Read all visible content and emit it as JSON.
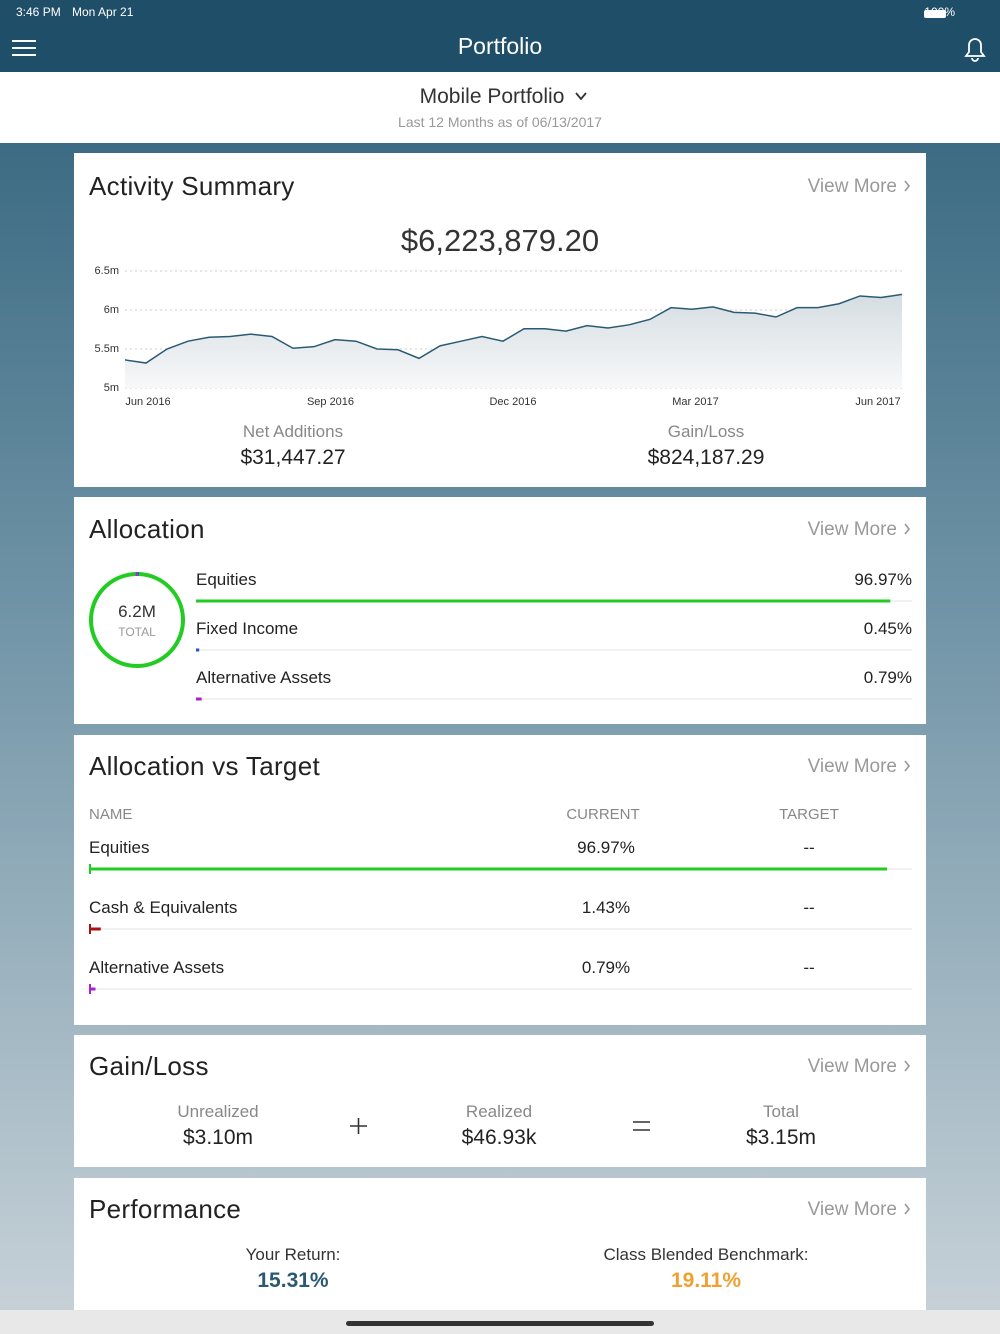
{
  "status": {
    "time": "3:46 PM",
    "date": "Mon Apr 21",
    "battery": "100%"
  },
  "nav": {
    "title": "Portfolio"
  },
  "portfolio": {
    "name": "Mobile Portfolio",
    "period": "Last 12 Months as of 06/13/2017"
  },
  "activity": {
    "title": "Activity Summary",
    "view_more": "View More",
    "total": "$6,223,879.20",
    "chart": {
      "type": "line",
      "x_labels": [
        "Jun 2016",
        "Sep 2016",
        "Dec 2016",
        "Mar 2017",
        "Jun 2017"
      ],
      "values": [
        5360000,
        5320000,
        5500000,
        5600000,
        5650000,
        5660000,
        5690000,
        5660000,
        5510000,
        5530000,
        5620000,
        5600000,
        5500000,
        5490000,
        5380000,
        5540000,
        5600000,
        5660000,
        5600000,
        5760000,
        5760000,
        5730000,
        5800000,
        5770000,
        5810000,
        5880000,
        6030000,
        6010000,
        6040000,
        5970000,
        5960000,
        5910000,
        6030000,
        6030000,
        6080000,
        6180000,
        6160000,
        6200000
      ],
      "color": "#2a5a73",
      "ylim": [
        5000000,
        6500000
      ],
      "yticks": [
        {
          "value": 5000000,
          "label": "5m"
        },
        {
          "value": 5500000,
          "label": "5.5m"
        },
        {
          "value": 6000000,
          "label": "6m"
        },
        {
          "value": 6500000,
          "label": "6.5m"
        }
      ],
      "grid": true
    },
    "net_additions": {
      "label": "Net Additions",
      "value": "$31,447.27"
    },
    "gain_loss": {
      "label": "Gain/Loss",
      "value": "$824,187.29"
    }
  },
  "allocation": {
    "title": "Allocation",
    "view_more": "View More",
    "total_value": "6.2M",
    "total_label": "TOTAL",
    "rows": [
      {
        "name": "Equities",
        "value": 96.97,
        "value_label": "96.97%",
        "color": "#22cc22"
      },
      {
        "name": "Fixed Income",
        "value": 0.45,
        "value_label": "0.45%",
        "color": "#2255cc"
      },
      {
        "name": "Alternative Assets",
        "value": 0.79,
        "value_label": "0.79%",
        "color": "#aa22cc"
      }
    ]
  },
  "allocation_vs_target": {
    "title": "Allocation vs Target",
    "view_more": "View More",
    "headers": [
      "NAME",
      "CURRENT",
      "TARGET"
    ],
    "rows": [
      {
        "name": "Equities",
        "current": 96.97,
        "current_label": "96.97%",
        "target": "--",
        "color": "#22cc22"
      },
      {
        "name": "Cash & Equivalents",
        "current": 1.43,
        "current_label": "1.43%",
        "target": "--",
        "color": "#aa1111"
      },
      {
        "name": "Alternative Assets",
        "current": 0.79,
        "current_label": "0.79%",
        "target": "--",
        "color": "#aa22cc"
      }
    ]
  },
  "gain_loss": {
    "title": "Gain/Loss",
    "view_more": "View More",
    "unrealized": {
      "label": "Unrealized",
      "value": "$3.10m"
    },
    "realized": {
      "label": "Realized",
      "value": "$46.93k"
    },
    "total": {
      "label": "Total",
      "value": "$3.15m"
    }
  },
  "performance": {
    "title": "Performance",
    "view_more": "View More",
    "your_return": {
      "label": "Your Return:",
      "value": "15.31%"
    },
    "benchmark": {
      "label": "Class Blended Benchmark:",
      "value": "19.11%"
    }
  }
}
